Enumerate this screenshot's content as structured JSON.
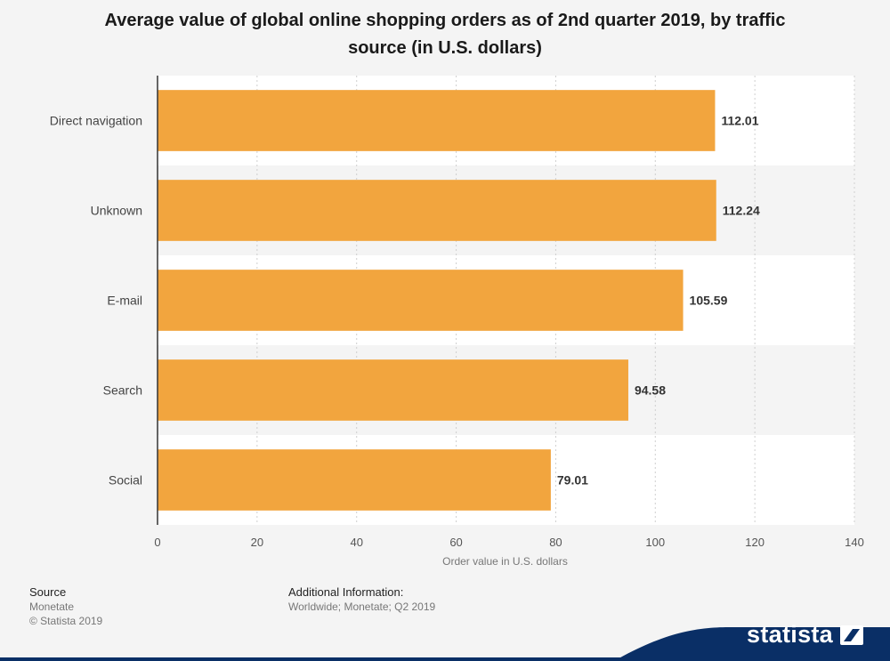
{
  "chart_data": {
    "type": "bar",
    "orientation": "horizontal",
    "title": "Average value of global online shopping orders as of 2nd quarter 2019, by traffic source (in U.S. dollars)",
    "categories": [
      "Direct navigation",
      "Unknown",
      "E-mail",
      "Search",
      "Social"
    ],
    "values": [
      112.01,
      112.24,
      105.59,
      94.58,
      79.01
    ],
    "value_labels": [
      "112.01",
      "112.24",
      "105.59",
      "94.58",
      "79.01"
    ],
    "xlabel": "Order value in U.S. dollars",
    "ylabel": "",
    "xlim": [
      0,
      140
    ],
    "xticks": [
      0,
      20,
      40,
      60,
      80,
      100,
      120,
      140
    ],
    "grid": true,
    "bar_color": "#f2a53e"
  },
  "footer": {
    "source_heading": "Source",
    "source_name": "Monetate",
    "copyright": "© Statista 2019",
    "info_heading": "Additional Information:",
    "info_text": "Worldwide; Monetate; Q2 2019"
  },
  "brand": {
    "name": "statista",
    "color": "#0a2f66",
    "logo_icon": "statista-logo-icon"
  }
}
